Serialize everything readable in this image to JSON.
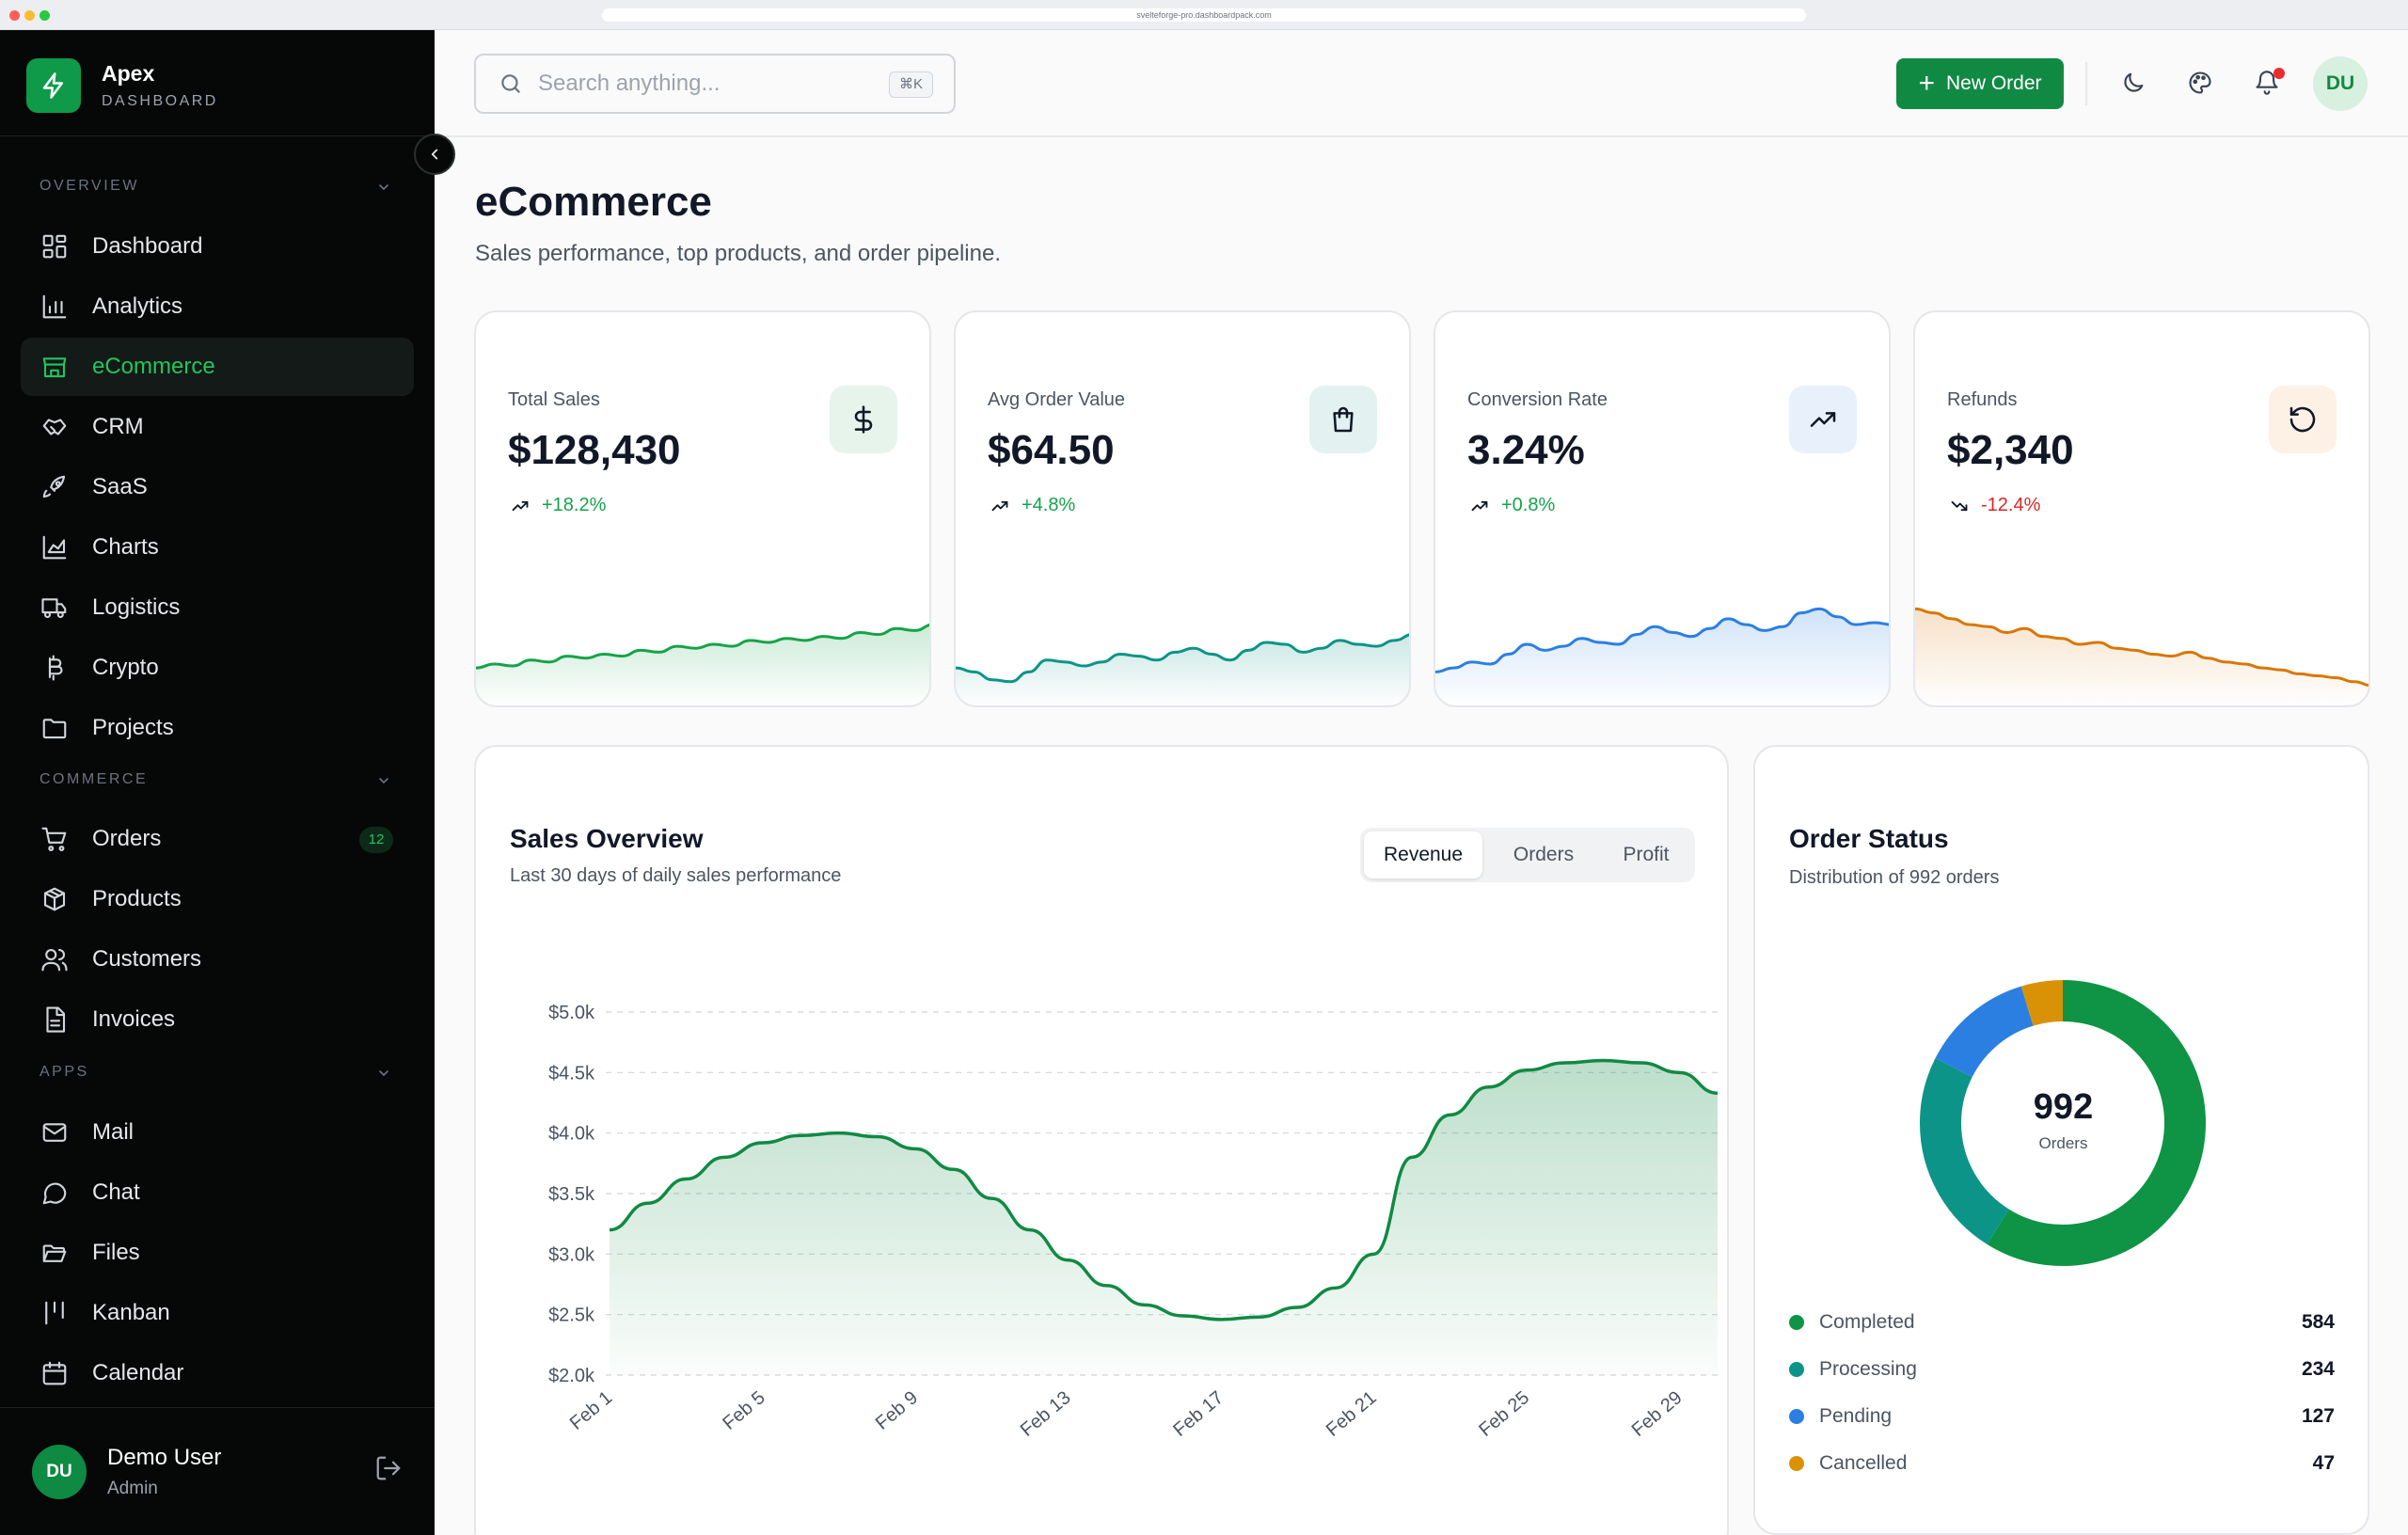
{
  "browser": {
    "url": "svelteforge-pro.dashboardpack.com"
  },
  "colors": {
    "primary": "#108a43",
    "sidebar_bg": "#050807",
    "active_text": "#22c55e"
  },
  "brand": {
    "name": "Apex",
    "subtitle": "DASHBOARD"
  },
  "sidebar": {
    "sections": [
      {
        "label": "OVERVIEW",
        "items": [
          {
            "label": "Dashboard",
            "icon": "grid-icon"
          },
          {
            "label": "Analytics",
            "icon": "bar-chart-icon"
          },
          {
            "label": "eCommerce",
            "icon": "store-icon",
            "active": true
          },
          {
            "label": "CRM",
            "icon": "handshake-icon"
          },
          {
            "label": "SaaS",
            "icon": "rocket-icon"
          },
          {
            "label": "Charts",
            "icon": "area-chart-icon"
          },
          {
            "label": "Logistics",
            "icon": "truck-icon"
          },
          {
            "label": "Crypto",
            "icon": "bitcoin-icon"
          },
          {
            "label": "Projects",
            "icon": "folder-icon"
          }
        ]
      },
      {
        "label": "COMMERCE",
        "items": [
          {
            "label": "Orders",
            "icon": "cart-icon",
            "badge": "12"
          },
          {
            "label": "Products",
            "icon": "package-icon"
          },
          {
            "label": "Customers",
            "icon": "users-icon"
          },
          {
            "label": "Invoices",
            "icon": "invoice-icon"
          }
        ]
      },
      {
        "label": "APPS",
        "items": [
          {
            "label": "Mail",
            "icon": "mail-icon"
          },
          {
            "label": "Chat",
            "icon": "chat-icon"
          },
          {
            "label": "Files",
            "icon": "folder-open-icon"
          },
          {
            "label": "Kanban",
            "icon": "kanban-icon"
          },
          {
            "label": "Calendar",
            "icon": "calendar-icon"
          }
        ]
      }
    ]
  },
  "user": {
    "initials": "DU",
    "name": "Demo User",
    "role": "Admin"
  },
  "header": {
    "search_placeholder": "Search anything...",
    "search_shortcut": "⌘K",
    "new_order_label": "New Order",
    "avatar_initials": "DU"
  },
  "page": {
    "title": "eCommerce",
    "subtitle": "Sales performance, top products, and order pipeline."
  },
  "stats": [
    {
      "label": "Total Sales",
      "value": "$128,430",
      "change": "+18.2%",
      "trend": "up",
      "icon": "dollar-icon",
      "color": "#16a34a",
      "icon_bg": "#e6f4ec",
      "spark": [
        40,
        42,
        41,
        44,
        43,
        46,
        45,
        47,
        46,
        49,
        48,
        51,
        50,
        52,
        51,
        54,
        53,
        55,
        54,
        56,
        55,
        58,
        57,
        60,
        59,
        62
      ]
    },
    {
      "label": "Avg Order Value",
      "value": "$64.50",
      "change": "+4.8%",
      "trend": "up",
      "icon": "shopping-bag-icon",
      "color": "#0d9488",
      "icon_bg": "#e3f2f1",
      "spark": [
        40,
        38,
        34,
        33,
        38,
        44,
        43,
        41,
        43,
        47,
        46,
        44,
        48,
        50,
        47,
        44,
        49,
        53,
        52,
        48,
        50,
        54,
        52,
        51,
        54,
        57
      ]
    },
    {
      "label": "Conversion Rate",
      "value": "3.24%",
      "change": "+0.8%",
      "trend": "up",
      "icon": "trending-up-icon",
      "color": "#2b7fe0",
      "icon_bg": "#e8f1fb",
      "spark": [
        38,
        40,
        43,
        42,
        47,
        52,
        49,
        51,
        55,
        53,
        52,
        57,
        61,
        58,
        56,
        60,
        65,
        62,
        59,
        61,
        68,
        70,
        66,
        62,
        63,
        62
      ]
    },
    {
      "label": "Refunds",
      "value": "$2,340",
      "change": "-12.4%",
      "trend": "down",
      "icon": "refresh-icon",
      "color": "#d97706",
      "icon_bg": "#fdf1e6",
      "spark": [
        70,
        68,
        65,
        62,
        61,
        58,
        60,
        56,
        55,
        52,
        53,
        50,
        49,
        47,
        46,
        48,
        45,
        43,
        42,
        40,
        39,
        37,
        36,
        35,
        33,
        31
      ]
    }
  ],
  "sales_overview": {
    "title": "Sales Overview",
    "subtitle": "Last 30 days of daily sales performance",
    "tabs": [
      "Revenue",
      "Orders",
      "Profit"
    ],
    "active_tab": "Revenue"
  },
  "chart_data": {
    "type": "area",
    "x": [
      "Feb 1",
      "Feb 2",
      "Feb 3",
      "Feb 4",
      "Feb 5",
      "Feb 6",
      "Feb 7",
      "Feb 8",
      "Feb 9",
      "Feb 10",
      "Feb 11",
      "Feb 12",
      "Feb 13",
      "Feb 14",
      "Feb 15",
      "Feb 16",
      "Feb 17",
      "Feb 18",
      "Feb 19",
      "Feb 20",
      "Feb 21",
      "Feb 22",
      "Feb 23",
      "Feb 24",
      "Feb 25",
      "Feb 26",
      "Feb 27",
      "Feb 28",
      "Feb 29",
      "Mar 1"
    ],
    "x_tick_labels": [
      "Feb 1",
      "Feb 5",
      "Feb 9",
      "Feb 13",
      "Feb 17",
      "Feb 21",
      "Feb 25",
      "Feb 29"
    ],
    "series": [
      {
        "values": [
          3200,
          3420,
          3620,
          3800,
          3920,
          3980,
          4000,
          3970,
          3870,
          3700,
          3460,
          3200,
          2950,
          2740,
          2580,
          2490,
          2460,
          2480,
          2560,
          2720,
          3000,
          3800,
          4150,
          4380,
          4520,
          4580,
          4600,
          4580,
          4500,
          4330
        ]
      }
    ],
    "y_ticks": [
      "$2.0k",
      "$2.5k",
      "$3.0k",
      "$3.5k",
      "$4.0k",
      "$4.5k",
      "$5.0k"
    ],
    "ylim": [
      2000,
      5000
    ],
    "grid": true,
    "color": "#108a43"
  },
  "order_status": {
    "title": "Order Status",
    "subtitle": "Distribution of 992 orders",
    "total": "992",
    "total_label": "Orders",
    "segments": [
      {
        "name": "Completed",
        "value": 584,
        "value_text": "584",
        "color": "#0e9444"
      },
      {
        "name": "Processing",
        "value": 234,
        "value_text": "234",
        "color": "#0d9488"
      },
      {
        "name": "Pending",
        "value": 127,
        "value_text": "127",
        "color": "#2b7fe0"
      },
      {
        "name": "Cancelled",
        "value": 47,
        "value_text": "47",
        "color": "#d99206"
      }
    ]
  }
}
